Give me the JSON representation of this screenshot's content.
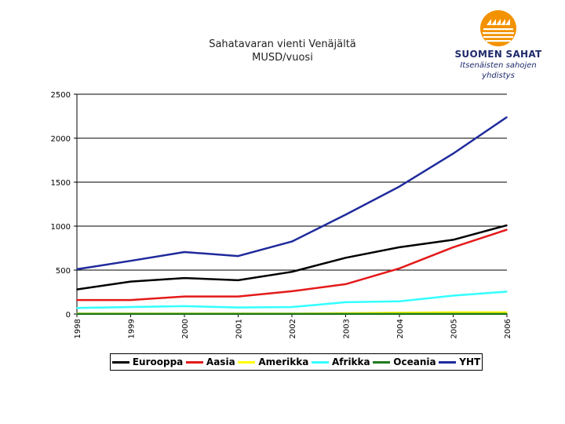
{
  "logo": {
    "name": "SUOMEN SAHAT",
    "subtitle_line1": "Itsenäisten sahojen",
    "subtitle_line2": "yhdistys",
    "color": "#f39200"
  },
  "chart_data": {
    "type": "line",
    "title_line1": "Sahatavaran vienti Venäjältä",
    "title_line2": "MUSD/vuosi",
    "categories": [
      "1998",
      "1999",
      "2000",
      "2001",
      "2002",
      "2003",
      "2004",
      "2005",
      "2006"
    ],
    "ylim": [
      0,
      2500
    ],
    "yticks": [
      0,
      500,
      1000,
      1500,
      2000,
      2500
    ],
    "grid": true,
    "legend_position": "bottom",
    "series": [
      {
        "name": "Eurooppa",
        "color": "#000000",
        "values": [
          280,
          370,
          410,
          385,
          480,
          640,
          760,
          845,
          1010
        ]
      },
      {
        "name": "Aasia",
        "color": "#e41a1a",
        "values": [
          160,
          160,
          200,
          200,
          260,
          340,
          520,
          760,
          960
        ]
      },
      {
        "name": "Amerikka",
        "color": "#ffff00",
        "values": [
          5,
          5,
          5,
          5,
          5,
          10,
          15,
          20,
          20
        ]
      },
      {
        "name": "Afrikka",
        "color": "#33ffff",
        "values": [
          70,
          80,
          90,
          75,
          80,
          135,
          145,
          210,
          255
        ]
      },
      {
        "name": "Oceania",
        "color": "#1f7a1f",
        "values": [
          2,
          2,
          2,
          2,
          2,
          2,
          2,
          2,
          2
        ]
      },
      {
        "name": "YHT",
        "color": "#1f2a9c",
        "values": [
          510,
          605,
          705,
          660,
          825,
          1130,
          1450,
          1825,
          2240
        ]
      }
    ]
  }
}
